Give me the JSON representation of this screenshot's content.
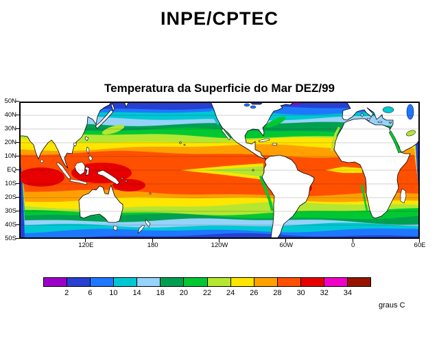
{
  "header": {
    "title": "INPE/CPTEC"
  },
  "map": {
    "title": "Temperatura da Superficie do Mar DEZ/99",
    "unit_label": "graus C"
  },
  "chart_data": {
    "type": "heatmap",
    "title": "Temperatura da Superficie do Mar DEZ/99",
    "subtitle": "INPE/CPTEC",
    "unit_label": "graus C",
    "projection": "latlon",
    "y_ticks": [
      "50N",
      "40N",
      "30N",
      "20N",
      "10N",
      "EQ",
      "10S",
      "20S",
      "30S",
      "40S",
      "50S"
    ],
    "x_ticks": [
      "120E",
      "180",
      "120W",
      "60W",
      "0",
      "60E"
    ],
    "colorbar": {
      "boundaries_c": [
        2,
        6,
        10,
        14,
        18,
        20,
        22,
        24,
        26,
        28,
        30,
        32,
        34
      ],
      "colors": [
        "#9c00c8",
        "#2840d2",
        "#1e78ff",
        "#00c8d2",
        "#96d2fa",
        "#00a050",
        "#00c832",
        "#b4e632",
        "#ffe600",
        "#ffa000",
        "#ff5000",
        "#e60000",
        "#f000c8",
        "#961400"
      ]
    },
    "zonal_isotherms": [
      {
        "temp_c": 6,
        "north_lat": 46,
        "south_lat": -47
      },
      {
        "temp_c": 10,
        "north_lat": 42,
        "south_lat": -44
      },
      {
        "temp_c": 14,
        "north_lat": 37,
        "south_lat": -41
      },
      {
        "temp_c": 18,
        "north_lat": 33,
        "south_lat": -37
      },
      {
        "temp_c": 20,
        "north_lat": 29,
        "south_lat": -33
      },
      {
        "temp_c": 22,
        "north_lat": 26,
        "south_lat": -30
      },
      {
        "temp_c": 24,
        "north_lat": 22,
        "south_lat": -26
      },
      {
        "temp_c": 26,
        "north_lat": 16,
        "south_lat": -22
      },
      {
        "temp_c": 28,
        "north_lat": 11,
        "south_lat": -17
      }
    ],
    "features": [
      {
        "name": "west-pacific-warm-pool",
        "temp_c": 31
      },
      {
        "name": "indian-ocean-warm-pool",
        "temp_c": 31
      },
      {
        "name": "coral-sea-warm",
        "temp_c": 31
      },
      {
        "name": "equatorial-pacific-cold-tongue",
        "temp_c": 23
      },
      {
        "name": "nw-pacific-cold",
        "temp_c": 0
      },
      {
        "name": "nw-atlantic-cold",
        "temp_c": 0
      }
    ]
  }
}
